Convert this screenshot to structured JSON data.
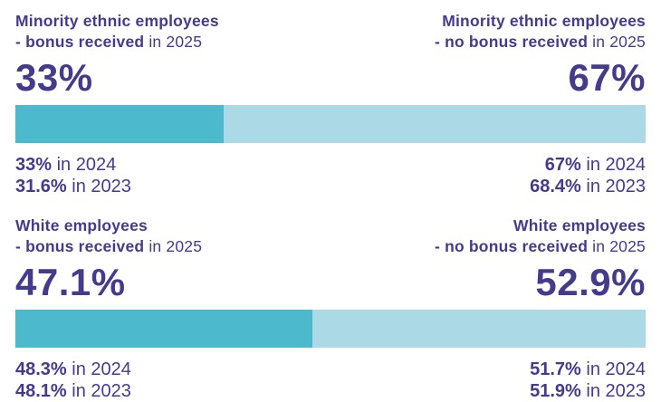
{
  "colors": {
    "text_purple": "#453b8c",
    "bar_bonus_teal": "#4cb9cd",
    "bar_no_bonus_light_blue": "#abdae6",
    "background": "#ffffff"
  },
  "sections": [
    {
      "left": {
        "title": "Minority ethnic employees",
        "subtitle_bold": "- bonus received",
        "subtitle_rest": " in 2025",
        "value": "33%",
        "history": [
          {
            "value": "33%",
            "rest": " in 2024"
          },
          {
            "value": "31.6%",
            "rest": " in 2023"
          }
        ]
      },
      "right": {
        "title": "Minority ethnic employees",
        "subtitle_bold": "- no bonus received",
        "subtitle_rest": " in 2025",
        "value": "67%",
        "history": [
          {
            "value": "67%",
            "rest": " in 2024"
          },
          {
            "value": "68.4%",
            "rest": " in 2023"
          }
        ]
      },
      "bar": {
        "left_pct": 33,
        "right_pct": 67
      }
    },
    {
      "left": {
        "title": "White employees",
        "subtitle_bold": "- bonus received",
        "subtitle_rest": " in 2025",
        "value": "47.1%",
        "history": [
          {
            "value": "48.3%",
            "rest": " in 2024"
          },
          {
            "value": "48.1%",
            "rest": " in 2023"
          }
        ]
      },
      "right": {
        "title": "White employees",
        "subtitle_bold": "- no bonus received",
        "subtitle_rest": " in 2025",
        "value": "52.9%",
        "history": [
          {
            "value": "51.7%",
            "rest": " in 2024"
          },
          {
            "value": "51.9%",
            "rest": " in 2023"
          }
        ]
      },
      "bar": {
        "left_pct": 47.1,
        "right_pct": 52.9
      }
    }
  ],
  "chart_data": {
    "type": "bar",
    "subtype": "horizontal-stacked-100pct",
    "unit": "%",
    "legend_position": "none",
    "grid": false,
    "groups": [
      {
        "category": "Minority ethnic employees",
        "series": [
          {
            "name": "bonus received",
            "color": "#4cb9cd",
            "values": {
              "2025": 33,
              "2024": 33,
              "2023": 31.6
            }
          },
          {
            "name": "no bonus received",
            "color": "#abdae6",
            "values": {
              "2025": 67,
              "2024": 67,
              "2023": 68.4
            }
          }
        ]
      },
      {
        "category": "White employees",
        "series": [
          {
            "name": "bonus received",
            "color": "#4cb9cd",
            "values": {
              "2025": 47.1,
              "2024": 48.3,
              "2023": 48.1
            }
          },
          {
            "name": "no bonus received",
            "color": "#abdae6",
            "values": {
              "2025": 52.9,
              "2024": 51.7,
              "2023": 51.9
            }
          }
        ]
      }
    ]
  }
}
